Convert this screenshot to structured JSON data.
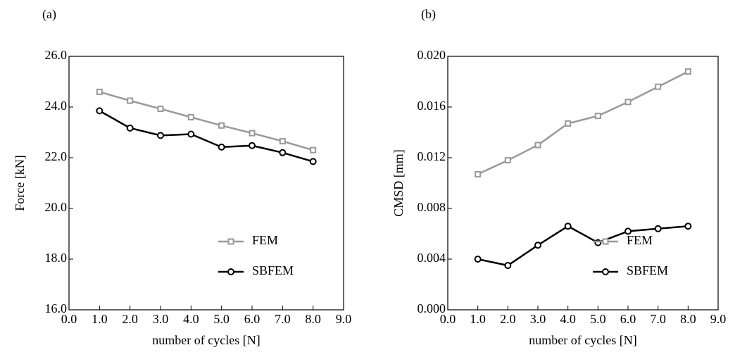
{
  "chart_data": [
    {
      "type": "line",
      "panel": "(a)",
      "ylabel": "Force [kN]",
      "xlabel": "number of cycles [N]",
      "x": [
        1,
        2,
        3,
        4,
        5,
        6,
        7,
        8
      ],
      "series": [
        {
          "name": "FEM",
          "color": "#999999",
          "marker": "square",
          "values": [
            24.6,
            24.25,
            23.93,
            23.6,
            23.27,
            22.97,
            22.65,
            22.3
          ]
        },
        {
          "name": "SBFEM",
          "color": "#000000",
          "marker": "circle",
          "values": [
            23.85,
            23.17,
            22.88,
            22.93,
            22.42,
            22.48,
            22.2,
            21.85
          ]
        }
      ],
      "xlim": [
        0,
        9
      ],
      "xticks": [
        {
          "value": 0,
          "label": "0.0"
        },
        {
          "value": 1,
          "label": "1.0"
        },
        {
          "value": 2,
          "label": "2.0"
        },
        {
          "value": 3,
          "label": "3.0"
        },
        {
          "value": 4,
          "label": "4.0"
        },
        {
          "value": 5,
          "label": "5.0"
        },
        {
          "value": 6,
          "label": "6.0"
        },
        {
          "value": 7,
          "label": "7.0"
        },
        {
          "value": 8,
          "label": "8.0"
        },
        {
          "value": 9,
          "label": "9.0"
        }
      ],
      "ylim": [
        16,
        26
      ],
      "yticks": [
        {
          "value": 16,
          "label": "16.0"
        },
        {
          "value": 18,
          "label": "18.0"
        },
        {
          "value": 20,
          "label": "20.0"
        },
        {
          "value": 22,
          "label": "22.0"
        },
        {
          "value": 24,
          "label": "24.0"
        },
        {
          "value": 26,
          "label": "26.0"
        }
      ],
      "legend": "lower right"
    },
    {
      "type": "line",
      "panel": "(b)",
      "ylabel": "CMSD [mm]",
      "xlabel": "number of cycles [N]",
      "x": [
        1,
        2,
        3,
        4,
        5,
        6,
        7,
        8
      ],
      "series": [
        {
          "name": "FEM",
          "color": "#999999",
          "marker": "square",
          "values": [
            0.0107,
            0.0118,
            0.013,
            0.0147,
            0.0153,
            0.0164,
            0.0176,
            0.0188
          ]
        },
        {
          "name": "SBFEM",
          "color": "#000000",
          "marker": "circle",
          "values": [
            0.004,
            0.0035,
            0.0051,
            0.0066,
            0.0053,
            0.0062,
            0.0064,
            0.0066
          ]
        }
      ],
      "xlim": [
        0,
        9
      ],
      "xticks": [
        {
          "value": 0,
          "label": "0.0"
        },
        {
          "value": 1,
          "label": "1.0"
        },
        {
          "value": 2,
          "label": "2.0"
        },
        {
          "value": 3,
          "label": "3.0"
        },
        {
          "value": 4,
          "label": "4.0"
        },
        {
          "value": 5,
          "label": "5.0"
        },
        {
          "value": 6,
          "label": "6.0"
        },
        {
          "value": 7,
          "label": "7.0"
        },
        {
          "value": 8,
          "label": "8.0"
        },
        {
          "value": 9,
          "label": "9.0"
        }
      ],
      "ylim": [
        0,
        0.02
      ],
      "yticks": [
        {
          "value": 0,
          "label": "0.000"
        },
        0.004,
        0.008,
        0.012,
        0.016,
        {
          "value": 0.02,
          "label": "0.020"
        }
      ],
      "legend": "lower right"
    }
  ]
}
